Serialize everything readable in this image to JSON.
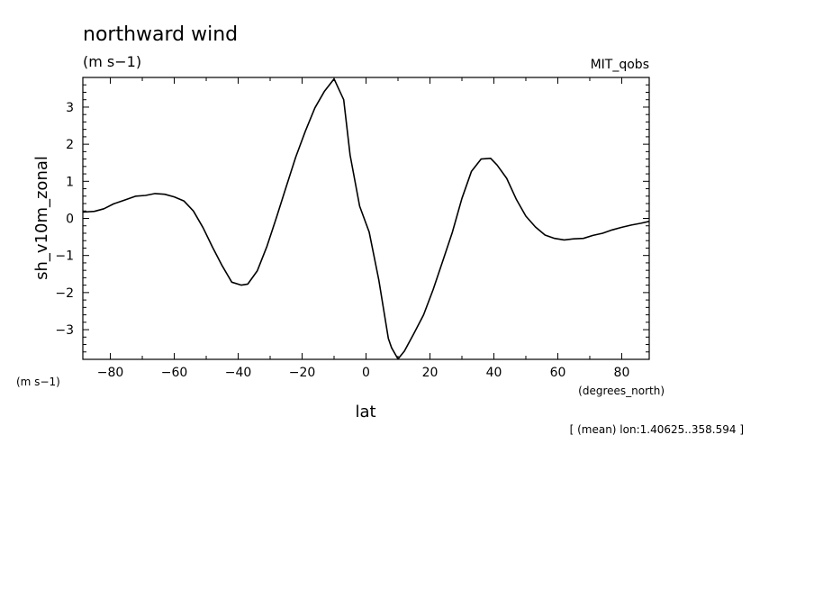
{
  "chart_data": {
    "type": "line",
    "title": "northward wind",
    "title_units": "(m s−1)",
    "source_label": "MIT_qobs",
    "xlabel": "lat",
    "x_units": "(degrees_north)",
    "ylabel": "sh_v10m_zonal",
    "y_units": "(m s−1)",
    "footnote": "[ (mean) lon:1.40625..358.594 ]",
    "xlim": [
      -88.6,
      88.6
    ],
    "ylim": [
      -3.8,
      3.8
    ],
    "x_ticks": [
      -80,
      -60,
      -40,
      -20,
      0,
      20,
      40,
      60,
      80
    ],
    "x_tick_labels": [
      "−80",
      "−60",
      "−40",
      "−20",
      "0",
      "20",
      "40",
      "60",
      "80"
    ],
    "y_ticks": [
      3,
      2,
      1,
      0,
      -1,
      -2,
      -3
    ],
    "y_tick_labels": [
      "3",
      "2",
      "1",
      "0",
      "−1",
      "−2",
      "−3"
    ],
    "grid": false,
    "series": [
      {
        "x": [
          -88.6,
          -85,
          -82,
          -79,
          -76,
          -72,
          -69,
          -66,
          -63,
          -60,
          -57,
          -54,
          -51,
          -48,
          -45,
          -42,
          -39,
          -37,
          -34,
          -31,
          -28,
          -25,
          -22,
          -19,
          -16,
          -13,
          -10,
          -7,
          -5,
          -2,
          1,
          4,
          7,
          8,
          10,
          12,
          15,
          18,
          21,
          24,
          27,
          30,
          33,
          36,
          39,
          41,
          44,
          47,
          50,
          53,
          56,
          59,
          62,
          65,
          68,
          71,
          74,
          77,
          80,
          83,
          86,
          88.6
        ],
        "y": [
          0.17,
          0.19,
          0.26,
          0.39,
          0.48,
          0.6,
          0.62,
          0.67,
          0.65,
          0.58,
          0.47,
          0.2,
          -0.25,
          -0.78,
          -1.28,
          -1.72,
          -1.8,
          -1.77,
          -1.41,
          -0.75,
          0.03,
          0.85,
          1.65,
          2.35,
          2.98,
          3.43,
          3.76,
          3.2,
          1.71,
          0.33,
          -0.37,
          -1.66,
          -3.24,
          -3.49,
          -3.79,
          -3.58,
          -3.1,
          -2.6,
          -1.92,
          -1.15,
          -0.38,
          0.54,
          1.27,
          1.6,
          1.62,
          1.44,
          1.08,
          0.52,
          0.06,
          -0.23,
          -0.45,
          -0.54,
          -0.58,
          -0.55,
          -0.54,
          -0.46,
          -0.4,
          -0.31,
          -0.24,
          -0.18,
          -0.13,
          -0.08
        ]
      }
    ]
  }
}
